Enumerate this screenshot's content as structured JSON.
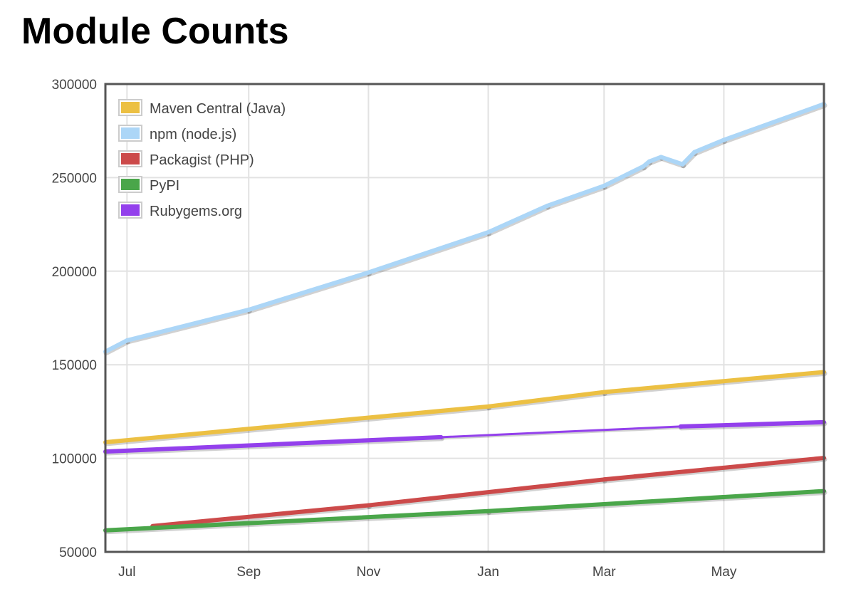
{
  "chart_data": {
    "type": "line",
    "title": "Module Counts",
    "xlabel": "",
    "ylabel": "",
    "x_units": "days since start of July (approx.)",
    "xlim": [
      -11,
      355
    ],
    "ylim": [
      50000,
      300000
    ],
    "yticks": [
      300000,
      250000,
      200000,
      150000,
      100000,
      50000
    ],
    "ytick_labels": [
      "300000",
      "250000",
      "200000",
      "150000",
      "100000",
      "50000"
    ],
    "xticks": [
      0,
      62,
      123,
      184,
      243,
      304
    ],
    "xtick_labels": [
      "Jul",
      "Sep",
      "Nov",
      "Jan",
      "Mar",
      "May"
    ],
    "grid": true,
    "legend_position": "top-left",
    "series": [
      {
        "name": "Maven Central (Java)",
        "color": "#ecc043",
        "x": [
          -11,
          184,
          243,
          355
        ],
        "y": [
          108600,
          127700,
          135400,
          146100
        ]
      },
      {
        "name": "npm (node.js)",
        "color": "#acd6f7",
        "x": [
          -11,
          0,
          62,
          123,
          184,
          214,
          243,
          263,
          266,
          272,
          283,
          289,
          304,
          355
        ],
        "y": [
          157000,
          163000,
          179400,
          199300,
          220800,
          234900,
          245600,
          256000,
          258600,
          261000,
          257100,
          263600,
          270100,
          289300
        ]
      },
      {
        "name": "Packagist (PHP)",
        "color": "#cc4a4a",
        "x": [
          13,
          123,
          243,
          355
        ],
        "y": [
          63800,
          74900,
          88700,
          100200
        ]
      },
      {
        "name": "PyPI",
        "color": "#4aa64a",
        "x": [
          -11,
          184,
          355
        ],
        "y": [
          61500,
          71800,
          82500
        ]
      },
      {
        "name": "Rubygems.org",
        "color": "#9340ec",
        "x": [
          -11,
          160,
          282,
          355
        ],
        "y": [
          103600,
          111300,
          117000,
          119300
        ],
        "thin_between": [
          160,
          282
        ]
      }
    ]
  }
}
